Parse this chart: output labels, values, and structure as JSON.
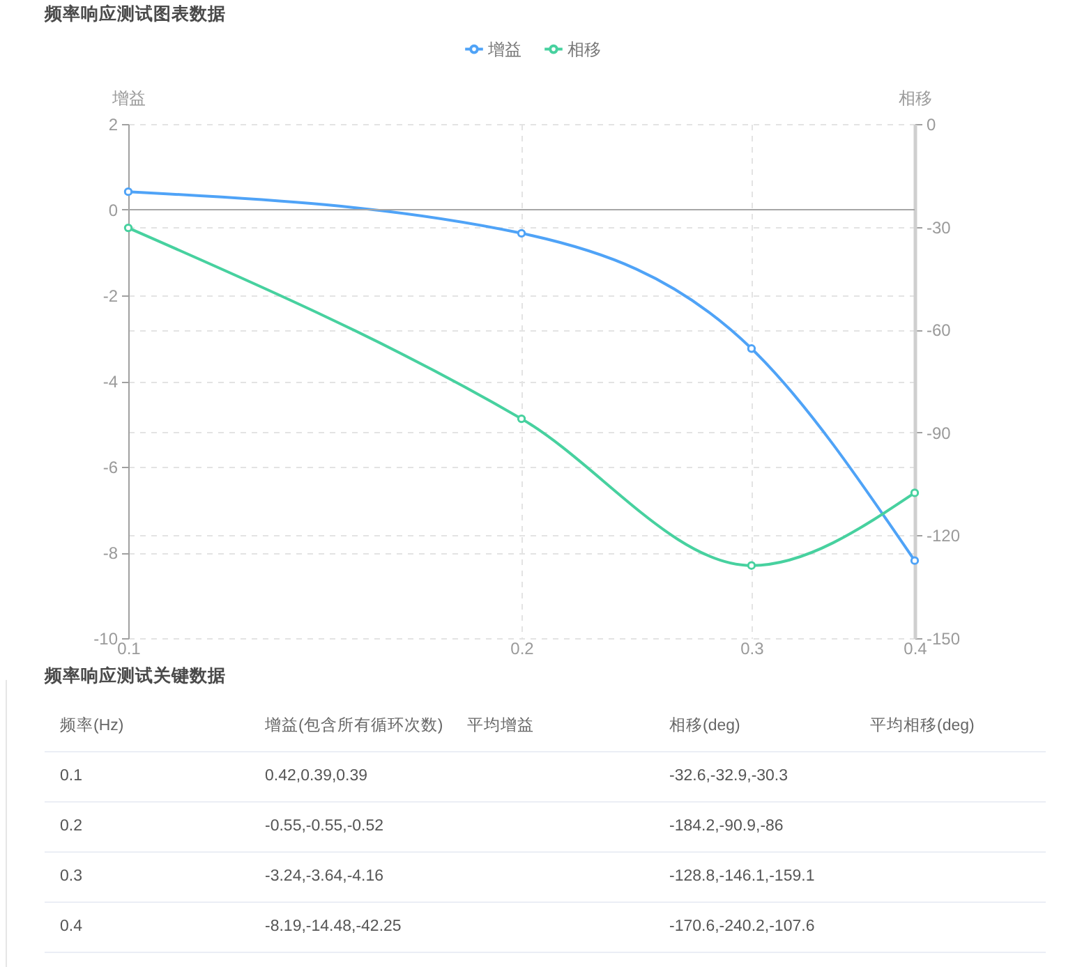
{
  "chart_data": {
    "type": "line",
    "title": "频率响应测试图表数据",
    "ylabel": "增益",
    "y2label": "相移",
    "x": [
      0.1,
      0.2,
      0.3,
      0.4
    ],
    "log": "x",
    "xlim": [
      0.1,
      0.4
    ],
    "xticks": [
      0.1,
      0.2,
      0.3,
      0.4
    ],
    "ylim": [
      -10,
      2
    ],
    "yticks": [
      -10,
      -8,
      -6,
      -4,
      -2,
      0,
      2
    ],
    "y2lim": [
      -150,
      0
    ],
    "y2ticks": [
      -150,
      -120,
      -90,
      -60,
      -30,
      0
    ],
    "series": [
      {
        "name": "增益",
        "color": "#4fa3f7",
        "values": [
          0.42,
          -0.55,
          -3.24,
          -8.19
        ]
      },
      {
        "name": "相移",
        "color": "#47d19f",
        "axis": "y2",
        "values": [
          -30.3,
          -86,
          -128.8,
          -107.6
        ]
      }
    ],
    "marker": "circle",
    "grid": true,
    "legend": "top",
    "ref_lines": [
      {
        "axis": "y",
        "value": 0,
        "color": "#a6a6a6"
      }
    ],
    "annotations": [
      "频率响应测试关键数据",
      "频率(Hz)",
      "增益(包含所有循环次数)",
      "平均增益",
      "相移(deg)",
      "平均相移(deg)",
      "0.1",
      "0.42,0.39,0.39",
      "-32.6,-32.9,-30.3",
      "0.2",
      "-0.55,-0.55,-0.52",
      "-184.2,-90.9,-86",
      "0.3",
      "-3.24,-3.64,-4.16",
      "-128.8,-146.1,-159.1",
      "0.4",
      "-8.19,-14.48,-42.25",
      "-170.6,-240.2,-107.6"
    ]
  }
}
